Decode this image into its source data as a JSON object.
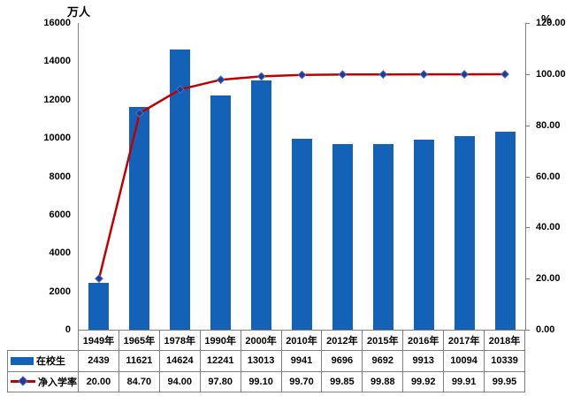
{
  "chart_data": {
    "type": "bar+line combo",
    "title": "",
    "grid": false,
    "legend_position": "data-table-left-column",
    "categories": [
      "1949年",
      "1965年",
      "1978年",
      "1990年",
      "2000年",
      "2010年",
      "2012年",
      "2015年",
      "2016年",
      "2017年",
      "2018年"
    ],
    "series": [
      {
        "name": "在校生",
        "type": "bar",
        "axis": "left",
        "color": "#1462b8",
        "values": [
          2439,
          11621,
          14624,
          12241,
          13013,
          9941,
          9696,
          9692,
          9913,
          10094,
          10339
        ]
      },
      {
        "name": "净入学率",
        "type": "line",
        "axis": "right",
        "color": "#c00000",
        "marker": "diamond",
        "marker_fill": "#283890",
        "marker_border": "#4472c4",
        "values_display": [
          "20.00",
          "84.70",
          "94.00",
          "97.80",
          "99.10",
          "99.70",
          "99.85",
          "99.88",
          "99.92",
          "99.91",
          "99.95"
        ],
        "values": [
          20.0,
          84.7,
          94.0,
          97.8,
          99.1,
          99.7,
          99.85,
          99.88,
          99.92,
          99.91,
          99.95
        ]
      }
    ],
    "left_axis": {
      "title": "万人",
      "min": 0,
      "max": 16000,
      "step": 2000,
      "tick_labels": [
        "16000",
        "14000",
        "12000",
        "10000",
        "8000",
        "6000",
        "4000",
        "2000",
        "0"
      ]
    },
    "right_axis": {
      "title": "%",
      "min": 0,
      "max": 120,
      "step": 20,
      "tick_labels": [
        "120.00",
        "100.00",
        "80.00",
        "60.00",
        "40.00",
        "20.00",
        "0.00"
      ]
    },
    "axis_line_color": "#808080",
    "table_border_color": "#7f7f7f"
  }
}
